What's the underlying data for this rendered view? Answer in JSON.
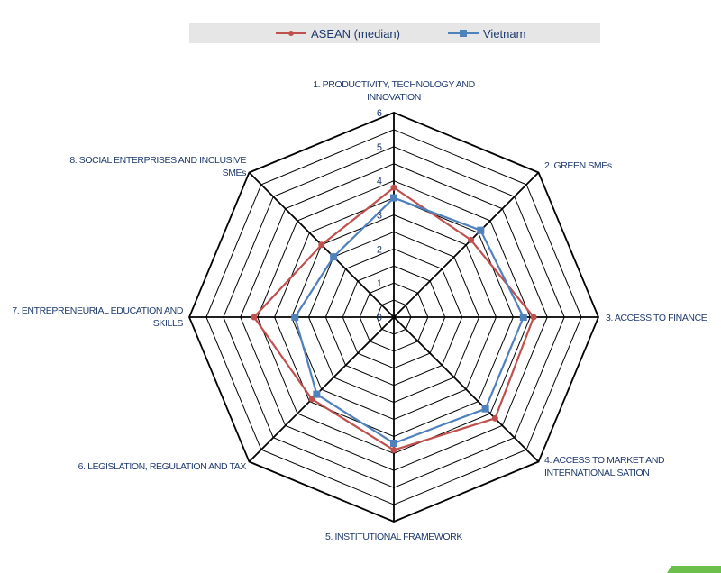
{
  "chart_data": {
    "type": "radar",
    "title": "",
    "categories": [
      "1. PRODUCTIVITY, TECHNOLOGY AND INNOVATION",
      "2. GREEN SMEs",
      "3. ACCESS TO FINANCE",
      "4. ACCESS TO MARKET AND INTERNATIONALISATION",
      "5. INSTITUTIONAL FRAMEWORK",
      "6. LEGISLATION, REGULATION AND TAX",
      "7. ENTREPRENEURIAL EDUCATION AND SKILLS",
      "8. SOCIAL ENTERPRISES AND INCLUSIVE SMEs"
    ],
    "category_lines": [
      [
        "1. PRODUCTIVITY, TECHNOLOGY AND",
        "INNOVATION"
      ],
      [
        "2. GREEN SMEs"
      ],
      [
        "3. ACCESS TO FINANCE"
      ],
      [
        "4. ACCESS TO MARKET AND",
        "INTERNATIONALISATION"
      ],
      [
        "5. INSTITUTIONAL FRAMEWORK"
      ],
      [
        "6. LEGISLATION, REGULATION AND TAX"
      ],
      [
        "7. ENTREPRENEURIAL EDUCATION AND",
        "SKILLS"
      ],
      [
        "8. SOCIAL ENTERPRISES AND INCLUSIVE",
        "SMEs"
      ]
    ],
    "series": [
      {
        "name": "ASEAN (median)",
        "color": "#c0504d",
        "marker": "circle",
        "values": [
          3.8,
          3.2,
          4.1,
          4.2,
          3.9,
          3.4,
          4.1,
          3.0
        ]
      },
      {
        "name": "Vietnam",
        "color": "#4f81bd",
        "marker": "square",
        "values": [
          3.5,
          3.6,
          3.8,
          3.8,
          3.7,
          3.2,
          2.9,
          2.5
        ]
      }
    ],
    "rmin": 0,
    "rmax": 6,
    "ticks": [
      0,
      1,
      2,
      3,
      4,
      5,
      6
    ],
    "grid": true,
    "legend_position": "top"
  }
}
